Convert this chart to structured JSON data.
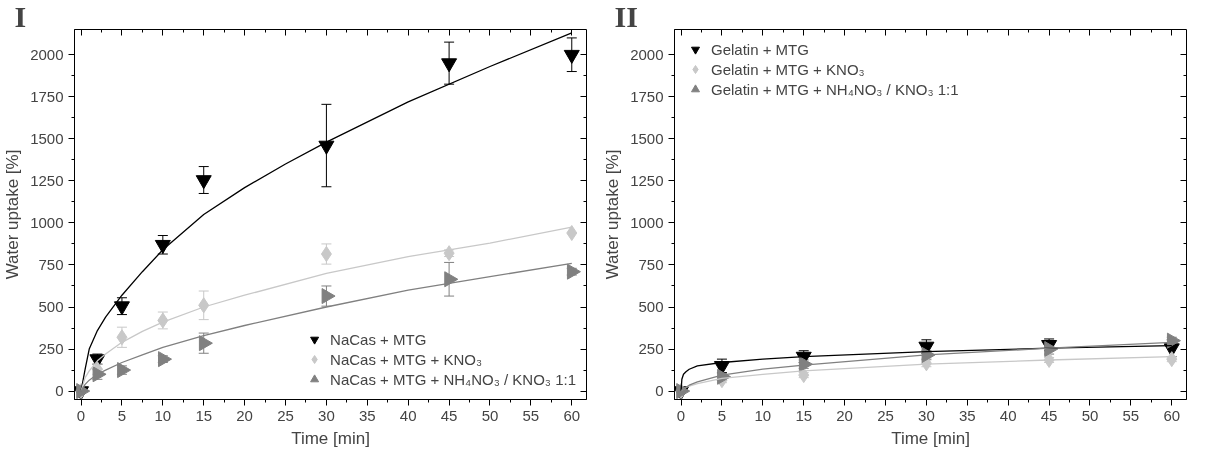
{
  "chart_data": [
    {
      "type": "scatter",
      "title": "I",
      "xlabel": "Time [min]",
      "ylabel": "Water uptake [%]",
      "xlim": [
        -0.8,
        61.8
      ],
      "ylim": [
        -50,
        2150
      ],
      "xticks": [
        0,
        5,
        10,
        15,
        20,
        25,
        30,
        35,
        40,
        45,
        50,
        55,
        60
      ],
      "yticks": [
        0,
        250,
        500,
        750,
        1000,
        1250,
        1500,
        1750,
        2000
      ],
      "grid": false,
      "legend": "bottom right",
      "series": [
        {
          "name": "NaCas + MTG",
          "color": "#000000",
          "marker": "triangle_down",
          "x": [
            0,
            2,
            5,
            10,
            15,
            30,
            45,
            60
          ],
          "values": [
            0,
            190,
            505,
            870,
            1255,
            1460,
            1950,
            2000
          ],
          "errors": [
            null,
            30,
            50,
            55,
            80,
            245,
            125,
            100
          ]
        },
        {
          "name": "NaCas + MTG + KNO₃",
          "color": "#c8c8c8",
          "marker": "diamond",
          "x": [
            0,
            2,
            5,
            10,
            15,
            30,
            45,
            60
          ],
          "values": [
            0,
            130,
            320,
            420,
            510,
            815,
            820,
            940
          ],
          "errors": [
            null,
            30,
            60,
            50,
            85,
            60,
            20,
            null
          ]
        },
        {
          "name": "NaCas + MTG + NH₄NO₃ / KNO₃ 1:1",
          "color": "#808080",
          "marker": "triangle_right",
          "x": [
            0,
            2,
            5,
            10,
            15,
            30,
            45,
            60
          ],
          "values": [
            0,
            100,
            125,
            190,
            285,
            565,
            665,
            710
          ],
          "errors": [
            null,
            30,
            25,
            20,
            60,
            60,
            100,
            20
          ]
        },
        {
          "type": "line",
          "color": "#000000",
          "x": [
            0,
            0.5,
            1,
            2,
            3,
            5,
            7.5,
            10,
            15,
            20,
            25,
            30,
            40,
            50,
            60
          ],
          "values": [
            0,
            130,
            250,
            360,
            440,
            570,
            710,
            840,
            1050,
            1210,
            1350,
            1480,
            1720,
            1930,
            2130
          ]
        },
        {
          "type": "line",
          "color": "#c8c8c8",
          "x": [
            0,
            0.5,
            1,
            2,
            3,
            5,
            7.5,
            10,
            15,
            20,
            30,
            40,
            45,
            50,
            60
          ],
          "values": [
            0,
            80,
            120,
            180,
            220,
            290,
            355,
            410,
            500,
            570,
            700,
            800,
            840,
            880,
            975
          ]
        },
        {
          "type": "line",
          "color": "#808080",
          "x": [
            0,
            0.5,
            1,
            2,
            3,
            5,
            7.5,
            10,
            15,
            20,
            30,
            40,
            45,
            50,
            60
          ],
          "values": [
            0,
            40,
            65,
            100,
            125,
            170,
            215,
            260,
            330,
            390,
            500,
            600,
            640,
            680,
            760
          ]
        }
      ]
    },
    {
      "type": "scatter",
      "title": "II",
      "xlabel": "Time [min]",
      "ylabel": "Water uptake [%]",
      "xlim": [
        -0.8,
        61.8
      ],
      "ylim": [
        -50,
        2150
      ],
      "xticks": [
        0,
        5,
        10,
        15,
        20,
        25,
        30,
        35,
        40,
        45,
        50,
        55,
        60
      ],
      "yticks": [
        0,
        250,
        500,
        750,
        1000,
        1250,
        1500,
        1750,
        2000
      ],
      "grid": false,
      "legend": "top left",
      "series": [
        {
          "name": "Gelatin + MTG",
          "color": "#000000",
          "marker": "triangle_down",
          "x": [
            0,
            5,
            15,
            30,
            45,
            60
          ],
          "values": [
            0,
            150,
            205,
            265,
            275,
            255
          ],
          "errors": [
            null,
            40,
            35,
            40,
            35,
            50
          ]
        },
        {
          "name": "Gelatin + MTG + KNO₃",
          "color": "#c8c8c8",
          "marker": "diamond",
          "x": [
            0,
            5,
            15,
            30,
            45,
            60
          ],
          "values": [
            0,
            65,
            95,
            165,
            185,
            190
          ],
          "errors": [
            null,
            15,
            15,
            20,
            15,
            15
          ]
        },
        {
          "name": "Gelatin + MTG + NH₄NO₃ / KNO₃ 1:1",
          "color": "#808080",
          "marker": "triangle_right",
          "x": [
            0,
            5,
            15,
            30,
            45,
            60
          ],
          "values": [
            0,
            85,
            160,
            215,
            250,
            300
          ],
          "errors": [
            null,
            20,
            25,
            25,
            30,
            20
          ]
        },
        {
          "type": "line",
          "color": "#000000",
          "x": [
            0,
            0.1,
            0.3,
            0.6,
            1,
            2,
            5,
            10,
            15,
            30,
            45,
            60
          ],
          "values": [
            0,
            70,
            100,
            115,
            130,
            150,
            170,
            190,
            205,
            235,
            255,
            270
          ]
        },
        {
          "type": "line",
          "color": "#c8c8c8",
          "x": [
            0,
            0.5,
            1,
            2,
            5,
            10,
            15,
            30,
            45,
            60
          ],
          "values": [
            0,
            20,
            30,
            45,
            75,
            100,
            120,
            160,
            185,
            205
          ]
        },
        {
          "type": "line",
          "color": "#808080",
          "x": [
            0,
            0.5,
            1,
            2,
            5,
            10,
            15,
            30,
            45,
            60
          ],
          "values": [
            0,
            20,
            35,
            55,
            95,
            130,
            155,
            215,
            255,
            290
          ]
        }
      ]
    }
  ]
}
